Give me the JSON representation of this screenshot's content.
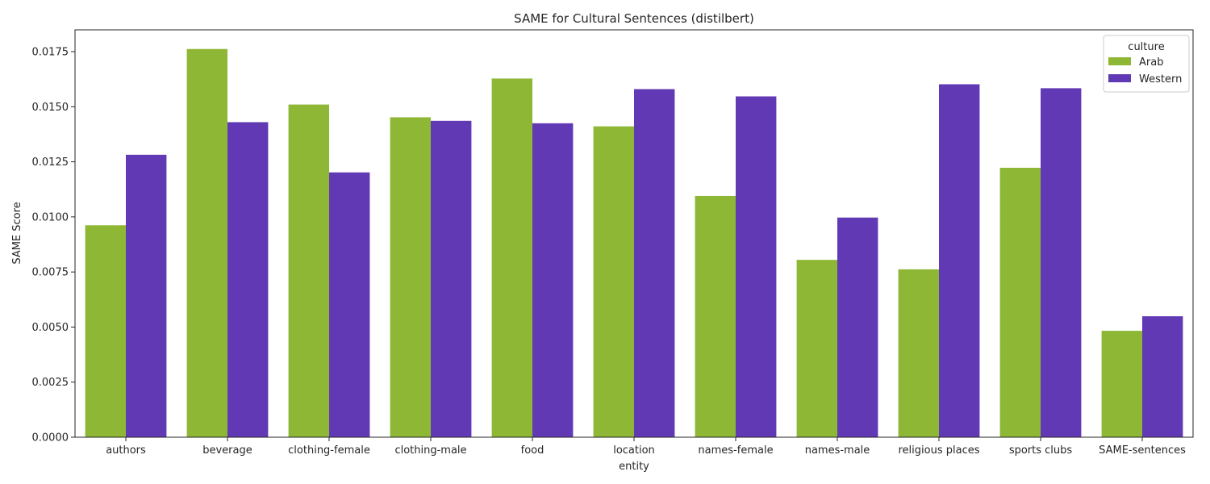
{
  "chart_data": {
    "type": "bar",
    "title": "SAME for Cultural Sentences (distilbert)",
    "xlabel": "entity",
    "ylabel": "SAME Score",
    "categories": [
      "authors",
      "beverage",
      "clothing-female",
      "clothing-male",
      "food",
      "location",
      "names-female",
      "names-male",
      "religious places",
      "sports clubs",
      "SAME-sentences"
    ],
    "series": [
      {
        "name": "Arab",
        "color": "#8db735",
        "values": [
          0.00962,
          0.01762,
          0.0151,
          0.01452,
          0.01628,
          0.01411,
          0.01095,
          0.00805,
          0.00762,
          0.01223,
          0.00483
        ]
      },
      {
        "name": "Western",
        "color": "#6239b5",
        "values": [
          0.01282,
          0.0143,
          0.01202,
          0.01436,
          0.01425,
          0.0158,
          0.01547,
          0.00997,
          0.01602,
          0.01584,
          0.00549
        ]
      }
    ],
    "ylim": [
      0,
      0.01849
    ],
    "yticks": [
      "0.0000",
      "0.0025",
      "0.0050",
      "0.0075",
      "0.0100",
      "0.0125",
      "0.0150",
      "0.0175"
    ],
    "legend": {
      "title": "culture",
      "position": "top-right"
    },
    "grid": false
  }
}
